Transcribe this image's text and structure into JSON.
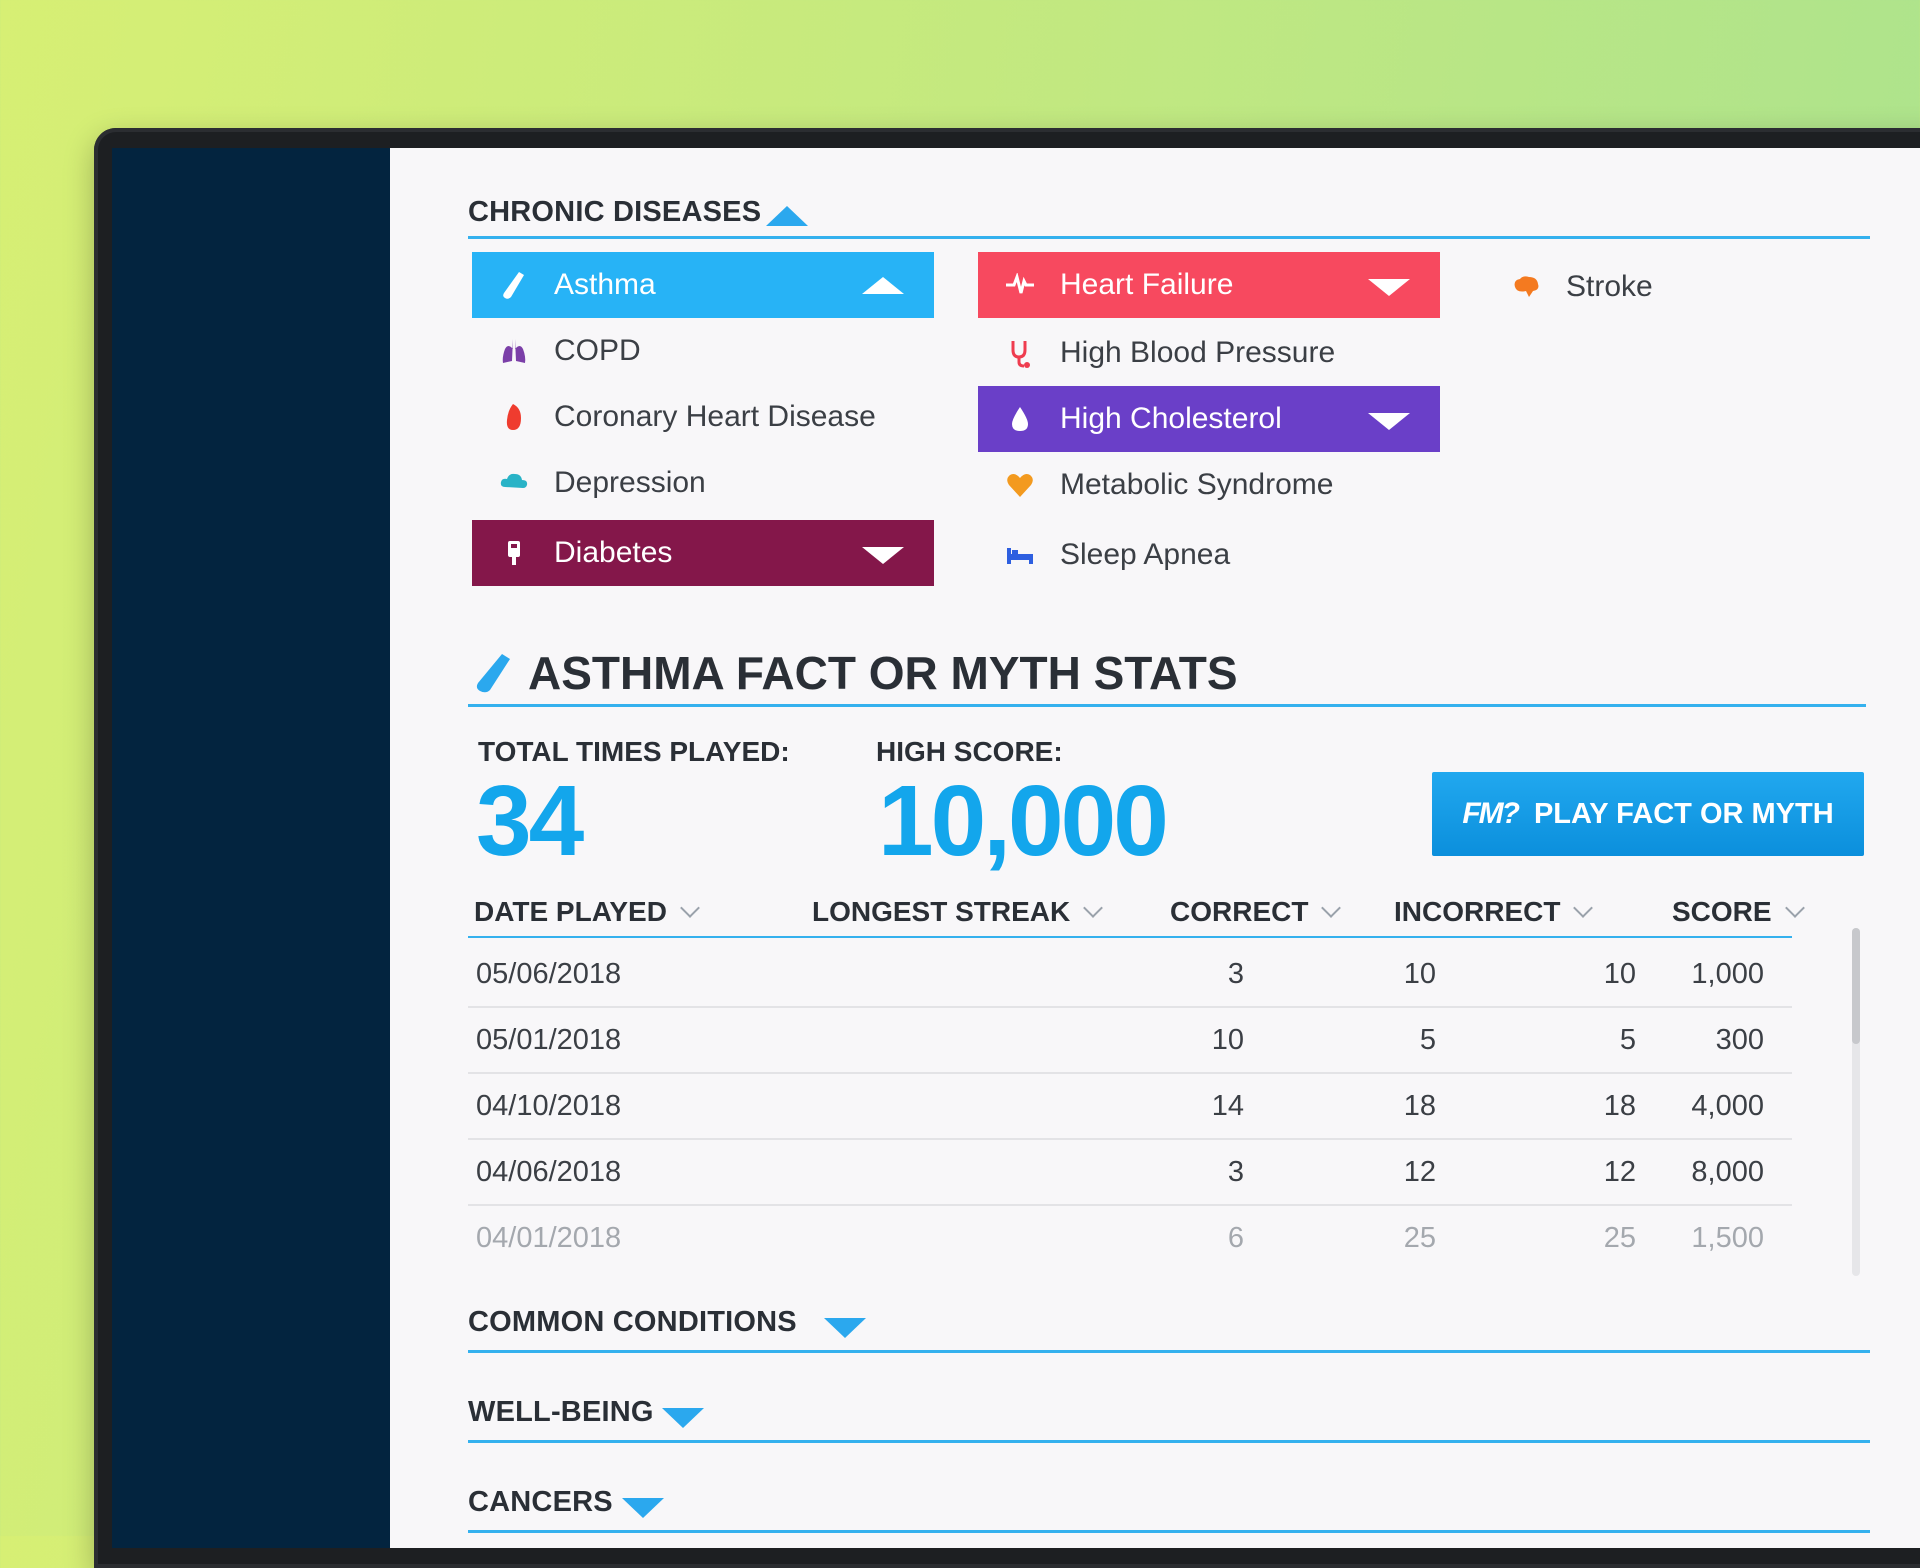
{
  "chronic": {
    "title": "CHRONIC DISEASES",
    "items": [
      {
        "label": "Asthma",
        "icon": "inhaler-icon",
        "selected": true,
        "bg": "#27b3f6",
        "expanded": true
      },
      {
        "label": "COPD",
        "icon": "lungs-icon",
        "color": "#7b3fa8"
      },
      {
        "label": "Coronary Heart Disease",
        "icon": "heart-organ-icon",
        "color": "#ef3c2f"
      },
      {
        "label": "Depression",
        "icon": "cloud-rain-icon",
        "color": "#29b3c7"
      },
      {
        "label": "Diabetes",
        "icon": "glucose-meter-icon",
        "selected": true,
        "bg": "#84174a"
      },
      {
        "label": "Heart Failure",
        "icon": "heartbeat-icon",
        "selected": true,
        "bg": "#f7495f"
      },
      {
        "label": "High Blood Pressure",
        "icon": "stethoscope-icon",
        "color": "#ef3c4f"
      },
      {
        "label": "High Cholesterol",
        "icon": "droplet-icon",
        "selected": true,
        "bg": "#6a3fc8"
      },
      {
        "label": "Metabolic Syndrome",
        "icon": "heart-icon",
        "color": "#f39a1f"
      },
      {
        "label": "Sleep Apnea",
        "icon": "bed-icon",
        "color": "#2e5fe0"
      },
      {
        "label": "Stroke",
        "icon": "brain-icon",
        "color": "#f47a20"
      }
    ]
  },
  "stats": {
    "title": "ASTHMA FACT OR MYTH STATS",
    "total_label": "TOTAL TIMES PLAYED:",
    "total_value": "34",
    "high_label": "HIGH SCORE:",
    "high_value": "10,000",
    "play_logo": "FM?",
    "play_label": "PLAY FACT OR MYTH"
  },
  "table": {
    "headers": [
      "DATE PLAYED",
      "LONGEST STREAK",
      "CORRECT",
      "INCORRECT",
      "SCORE"
    ],
    "rows": [
      [
        "05/06/2018",
        "3",
        "10",
        "10",
        "1,000"
      ],
      [
        "05/01/2018",
        "10",
        "5",
        "5",
        "300"
      ],
      [
        "04/10/2018",
        "14",
        "18",
        "18",
        "4,000"
      ],
      [
        "04/06/2018",
        "3",
        "12",
        "12",
        "8,000"
      ],
      [
        "04/01/2018",
        "6",
        "25",
        "25",
        "1,500"
      ]
    ]
  },
  "sections": [
    {
      "title": "COMMON CONDITIONS"
    },
    {
      "title": "WELL-BEING"
    },
    {
      "title": "CANCERS"
    }
  ],
  "colors": {
    "accent": "#13a6ec",
    "sidebar": "#03243f"
  }
}
